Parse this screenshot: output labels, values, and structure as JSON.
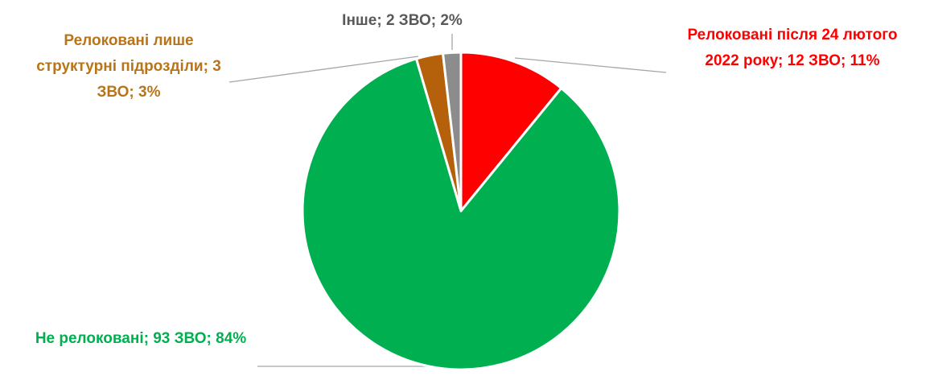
{
  "chart_data": {
    "type": "pie",
    "categories": [
      "Релоковані після 24 лютого 2022 року;",
      "Не релоковані;",
      "Релоковані лише структурні підрозділи;",
      "Інше;"
    ],
    "values": [
      12,
      93,
      3,
      2
    ],
    "value_labels": [
      "12 ЗВО;",
      "93 ЗВО;",
      "3 ЗВО;",
      "2 ЗВО;"
    ],
    "percents": [
      11,
      84,
      3,
      2
    ],
    "percent_labels": [
      "11%",
      "84%",
      "3%",
      "2%"
    ],
    "colors": [
      "#ff0000",
      "#00b050",
      "#b5610b",
      "#8c8c8c"
    ],
    "label_colors": [
      "#ff0000",
      "#00b050",
      "#b8741a",
      "#595959"
    ]
  }
}
